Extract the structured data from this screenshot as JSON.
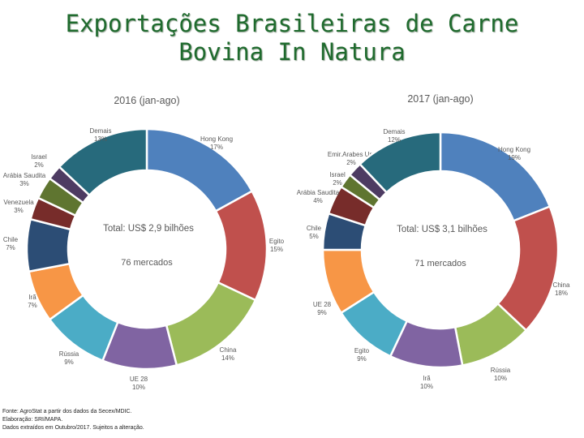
{
  "title_line1": "Exportações Brasileiras de Carne",
  "title_line2": "Bovina In Natura",
  "chart_data": [
    {
      "type": "pie",
      "subtype": "donut",
      "title": "2016 (jan-ago)",
      "center_total": "Total: US$ 2,9 bilhões",
      "center_markets": "76 mercados",
      "slices": [
        {
          "label": "Hong Kong",
          "pct_label": "17%",
          "value": 17,
          "color": "#4f81bd"
        },
        {
          "label": "Egito",
          "pct_label": "15%",
          "value": 15,
          "color": "#c0504d"
        },
        {
          "label": "China",
          "pct_label": "14%",
          "value": 14,
          "color": "#9bbb59"
        },
        {
          "label": "UE 28",
          "pct_label": "10%",
          "value": 10,
          "color": "#8064a2"
        },
        {
          "label": "Rússia",
          "pct_label": "9%",
          "value": 9,
          "color": "#4bacc6"
        },
        {
          "label": "Irã",
          "pct_label": "7%",
          "value": 7,
          "color": "#f79646"
        },
        {
          "label": "Chile",
          "pct_label": "7%",
          "value": 7,
          "color": "#2c4d75"
        },
        {
          "label": "Venezuela",
          "pct_label": "3%",
          "value": 3,
          "color": "#772c2a"
        },
        {
          "label": "Arábia Saudita",
          "pct_label": "3%",
          "value": 3,
          "color": "#5f7530"
        },
        {
          "label": "Israel",
          "pct_label": "2%",
          "value": 2,
          "color": "#4d3b62"
        },
        {
          "label": "Demais",
          "pct_label": "13%",
          "value": 13,
          "color": "#276a7c"
        }
      ]
    },
    {
      "type": "pie",
      "subtype": "donut",
      "title": "2017 (jan-ago)",
      "center_total": "Total: US$ 3,1 bilhões",
      "center_markets": "71 mercados",
      "slices": [
        {
          "label": "Hong Kong",
          "pct_label": "19%",
          "value": 19,
          "color": "#4f81bd"
        },
        {
          "label": "China",
          "pct_label": "18%",
          "value": 18,
          "color": "#c0504d"
        },
        {
          "label": "Rússia",
          "pct_label": "10%",
          "value": 10,
          "color": "#9bbb59"
        },
        {
          "label": "Irã",
          "pct_label": "10%",
          "value": 10,
          "color": "#8064a2"
        },
        {
          "label": "Egito",
          "pct_label": "9%",
          "value": 9,
          "color": "#4bacc6"
        },
        {
          "label": "UE 28",
          "pct_label": "9%",
          "value": 9,
          "color": "#f79646"
        },
        {
          "label": "Chile",
          "pct_label": "5%",
          "value": 5,
          "color": "#2c4d75"
        },
        {
          "label": "Arábia Saudita",
          "pct_label": "4%",
          "value": 4,
          "color": "#772c2a"
        },
        {
          "label": "Israel",
          "pct_label": "2%",
          "value": 2,
          "color": "#5f7530"
        },
        {
          "label": "Emir.Arabes Un.",
          "pct_label": "2%",
          "value": 2,
          "color": "#4d3b62"
        },
        {
          "label": "Demais",
          "pct_label": "12%",
          "value": 12,
          "color": "#276a7c"
        }
      ]
    }
  ],
  "footer": {
    "line1": "Fonte: AgroStat a partir dos dados da Secex/MDIC.",
    "line2": "Elaboração: SRI/MAPA.",
    "line3": "Dados extraídos em Outubro/2017. Sujeitos a alteração."
  }
}
